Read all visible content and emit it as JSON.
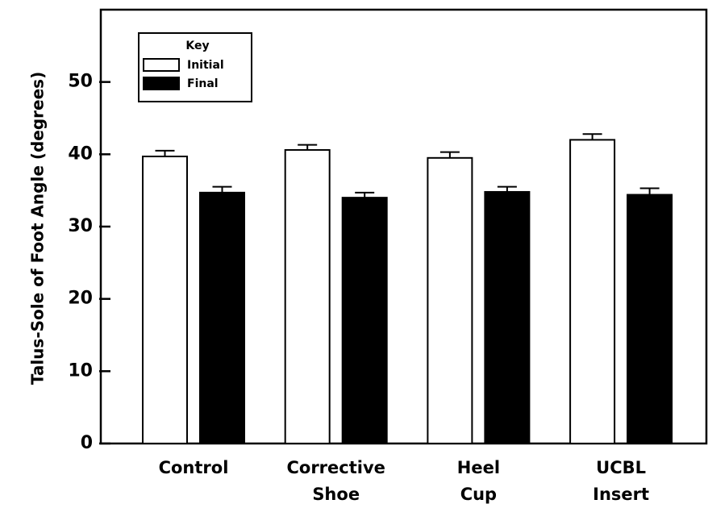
{
  "chart_data": {
    "type": "bar",
    "ylabel": "Talus-Sole of Foot Angle (degrees)",
    "categories": [
      [
        "Control"
      ],
      [
        "Corrective",
        "Shoe"
      ],
      [
        "Heel",
        "Cup"
      ],
      [
        "UCBL",
        "Insert"
      ]
    ],
    "series": [
      {
        "name": "Initial",
        "color": "#ffffff",
        "values": [
          39.7,
          40.6,
          39.5,
          42.0
        ],
        "errors": [
          0.8,
          0.7,
          0.8,
          0.8
        ]
      },
      {
        "name": "Final",
        "color": "#000000",
        "values": [
          34.7,
          34.0,
          34.8,
          34.4
        ],
        "errors": [
          0.8,
          0.7,
          0.7,
          0.9
        ]
      }
    ],
    "legend_title": "Key",
    "legend": "upper left",
    "ylim": [
      0,
      60
    ],
    "yticks": [
      0,
      10,
      20,
      30,
      40,
      50
    ]
  }
}
